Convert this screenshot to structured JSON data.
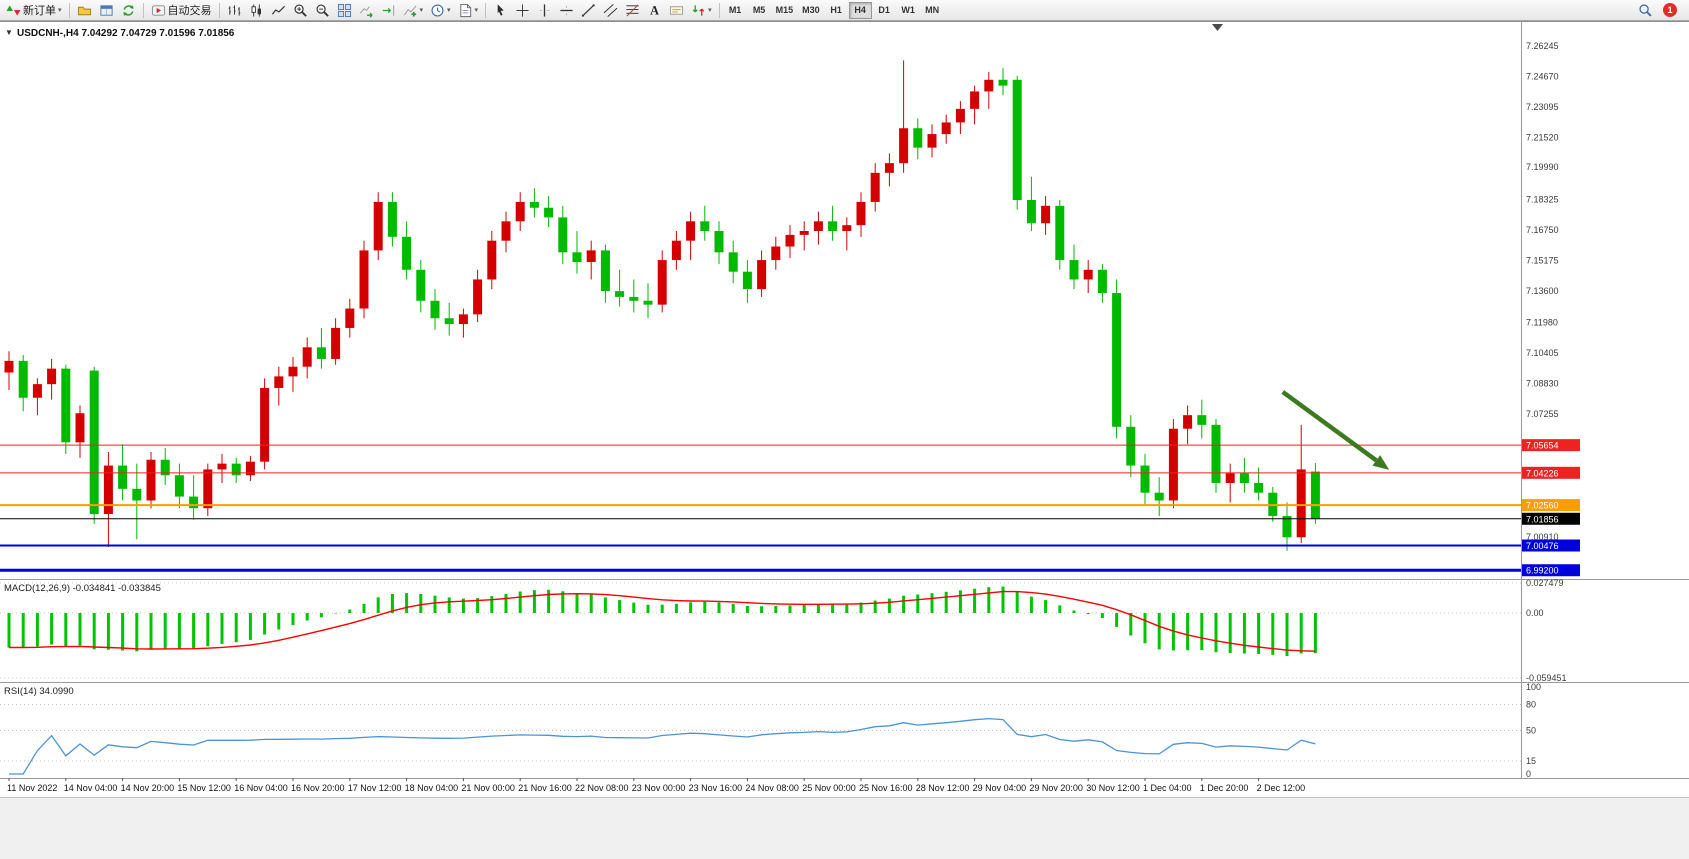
{
  "toolbar": {
    "new_order_label": "新订单",
    "autotrading_label": "自动交易",
    "timeframes": [
      "M1",
      "M5",
      "M15",
      "M30",
      "H1",
      "H4",
      "D1",
      "W1",
      "MN"
    ],
    "active_timeframe": "H4",
    "notification_count": "1"
  },
  "chart_data": {
    "type": "candlestick",
    "symbol": "USDCNH-",
    "period": "H4",
    "quote_line": "USDCNH-,H4 7.04292 7.04729 7.01596 7.01856",
    "ohlc_current": {
      "open": 7.04292,
      "high": 7.04729,
      "low": 7.01596,
      "close": 7.01856
    },
    "ylim": [
      6.988,
      7.2712
    ],
    "colors": {
      "up": "#d40000",
      "down": "#00ba00",
      "macd_hist": "#00c400",
      "macd_signal": "#ff0000",
      "rsi_line": "#4a94d6",
      "arrow": "#3c7a1f"
    },
    "price_axis_ticks": [
      7.26245,
      7.2467,
      7.23095,
      7.2152,
      7.1999,
      7.18325,
      7.1675,
      7.15175,
      7.136,
      7.1198,
      7.10405,
      7.0883,
      7.07255,
      7.0091
    ],
    "time_axis_labels": [
      "11 Nov 2022",
      "14 Nov 04:00",
      "14 Nov 20:00",
      "15 Nov 12:00",
      "16 Nov 04:00",
      "16 Nov 20:00",
      "17 Nov 12:00",
      "18 Nov 04:00",
      "21 Nov 00:00",
      "21 Nov 16:00",
      "22 Nov 08:00",
      "23 Nov 00:00",
      "23 Nov 16:00",
      "24 Nov 08:00",
      "25 Nov 00:00",
      "25 Nov 16:00",
      "28 Nov 12:00",
      "29 Nov 04:00",
      "29 Nov 20:00",
      "30 Nov 12:00",
      "1 Dec 04:00",
      "1 Dec 20:00",
      "2 Dec 12:00"
    ],
    "bars_per_label": 4,
    "price_lines": [
      {
        "price": 7.05654,
        "label": "7.05654",
        "color": "#ef2222",
        "width": 1
      },
      {
        "price": 7.04226,
        "label": "7.04226",
        "color": "#ef2222",
        "width": 1
      },
      {
        "price": 7.0256,
        "label": "7.02560",
        "color": "#ff9c00",
        "width": 2
      },
      {
        "price": 7.01856,
        "label": "7.01856",
        "color": "#000000",
        "width": 1
      },
      {
        "price": 7.00476,
        "label": "7.00476",
        "color": "#0000dd",
        "width": 2
      },
      {
        "price": 6.992,
        "label": "6.99200",
        "color": "#0000dd",
        "width": 3
      }
    ],
    "candles": [
      [
        7.094,
        7.105,
        7.085,
        7.1
      ],
      [
        7.1,
        7.103,
        7.074,
        7.081
      ],
      [
        7.081,
        7.091,
        7.072,
        7.088
      ],
      [
        7.088,
        7.101,
        7.08,
        7.096
      ],
      [
        7.096,
        7.098,
        7.052,
        7.058
      ],
      [
        7.058,
        7.077,
        7.05,
        7.073
      ],
      [
        7.095,
        7.097,
        7.016,
        7.021
      ],
      [
        7.021,
        7.053,
        7.004,
        7.046
      ],
      [
        7.046,
        7.057,
        7.028,
        7.034
      ],
      [
        7.034,
        7.047,
        7.008,
        7.028
      ],
      [
        7.028,
        7.053,
        7.024,
        7.049
      ],
      [
        7.049,
        7.055,
        7.036,
        7.041
      ],
      [
        7.041,
        7.047,
        7.024,
        7.03
      ],
      [
        7.03,
        7.041,
        7.018,
        7.024
      ],
      [
        7.024,
        7.047,
        7.02,
        7.044
      ],
      [
        7.044,
        7.052,
        7.037,
        7.047
      ],
      [
        7.047,
        7.05,
        7.037,
        7.041
      ],
      [
        7.041,
        7.051,
        7.038,
        7.048
      ],
      [
        7.048,
        7.091,
        7.044,
        7.086
      ],
      [
        7.086,
        7.097,
        7.077,
        7.092
      ],
      [
        7.092,
        7.102,
        7.084,
        7.097
      ],
      [
        7.097,
        7.112,
        7.091,
        7.107
      ],
      [
        7.107,
        7.117,
        7.096,
        7.101
      ],
      [
        7.101,
        7.122,
        7.098,
        7.117
      ],
      [
        7.117,
        7.132,
        7.112,
        7.127
      ],
      [
        7.127,
        7.162,
        7.122,
        7.157
      ],
      [
        7.157,
        7.187,
        7.152,
        7.182
      ],
      [
        7.182,
        7.187,
        7.159,
        7.164
      ],
      [
        7.164,
        7.172,
        7.142,
        7.147
      ],
      [
        7.147,
        7.152,
        7.125,
        7.131
      ],
      [
        7.131,
        7.137,
        7.116,
        7.122
      ],
      [
        7.122,
        7.13,
        7.113,
        7.119
      ],
      [
        7.119,
        7.127,
        7.112,
        7.124
      ],
      [
        7.124,
        7.147,
        7.12,
        7.142
      ],
      [
        7.142,
        7.167,
        7.137,
        7.162
      ],
      [
        7.162,
        7.177,
        7.156,
        7.172
      ],
      [
        7.172,
        7.187,
        7.167,
        7.182
      ],
      [
        7.182,
        7.189,
        7.174,
        7.179
      ],
      [
        7.179,
        7.185,
        7.169,
        7.174
      ],
      [
        7.174,
        7.18,
        7.15,
        7.156
      ],
      [
        7.156,
        7.167,
        7.145,
        7.151
      ],
      [
        7.151,
        7.162,
        7.142,
        7.157
      ],
      [
        7.157,
        7.16,
        7.13,
        7.136
      ],
      [
        7.136,
        7.147,
        7.128,
        7.133
      ],
      [
        7.133,
        7.142,
        7.125,
        7.131
      ],
      [
        7.131,
        7.14,
        7.122,
        7.129
      ],
      [
        7.129,
        7.157,
        7.125,
        7.152
      ],
      [
        7.152,
        7.167,
        7.147,
        7.162
      ],
      [
        7.162,
        7.177,
        7.152,
        7.172
      ],
      [
        7.172,
        7.18,
        7.162,
        7.167
      ],
      [
        7.167,
        7.172,
        7.15,
        7.156
      ],
      [
        7.156,
        7.162,
        7.14,
        7.146
      ],
      [
        7.146,
        7.152,
        7.13,
        7.137
      ],
      [
        7.137,
        7.157,
        7.133,
        7.152
      ],
      [
        7.152,
        7.164,
        7.147,
        7.159
      ],
      [
        7.159,
        7.17,
        7.153,
        7.165
      ],
      [
        7.165,
        7.172,
        7.157,
        7.167
      ],
      [
        7.167,
        7.177,
        7.16,
        7.172
      ],
      [
        7.172,
        7.18,
        7.162,
        7.167
      ],
      [
        7.167,
        7.174,
        7.157,
        7.17
      ],
      [
        7.17,
        7.187,
        7.164,
        7.182
      ],
      [
        7.182,
        7.202,
        7.177,
        7.197
      ],
      [
        7.197,
        7.207,
        7.19,
        7.202
      ],
      [
        7.202,
        7.255,
        7.197,
        7.22
      ],
      [
        7.22,
        7.225,
        7.204,
        7.21
      ],
      [
        7.21,
        7.222,
        7.205,
        7.217
      ],
      [
        7.217,
        7.227,
        7.212,
        7.223
      ],
      [
        7.223,
        7.234,
        7.217,
        7.23
      ],
      [
        7.23,
        7.242,
        7.222,
        7.239
      ],
      [
        7.239,
        7.249,
        7.23,
        7.245
      ],
      [
        7.245,
        7.251,
        7.237,
        7.242
      ],
      [
        7.245,
        7.247,
        7.178,
        7.183
      ],
      [
        7.183,
        7.195,
        7.167,
        7.171
      ],
      [
        7.171,
        7.185,
        7.165,
        7.18
      ],
      [
        7.18,
        7.183,
        7.147,
        7.152
      ],
      [
        7.152,
        7.16,
        7.137,
        7.142
      ],
      [
        7.142,
        7.152,
        7.135,
        7.147
      ],
      [
        7.147,
        7.15,
        7.13,
        7.135
      ],
      [
        7.135,
        7.142,
        7.06,
        7.066
      ],
      [
        7.066,
        7.072,
        7.04,
        7.046
      ],
      [
        7.046,
        7.052,
        7.026,
        7.032
      ],
      [
        7.032,
        7.04,
        7.02,
        7.028
      ],
      [
        7.028,
        7.07,
        7.024,
        7.065
      ],
      [
        7.065,
        7.077,
        7.057,
        7.072
      ],
      [
        7.072,
        7.08,
        7.06,
        7.067
      ],
      [
        7.067,
        7.07,
        7.032,
        7.037
      ],
      [
        7.037,
        7.047,
        7.027,
        7.042
      ],
      [
        7.042,
        7.05,
        7.032,
        7.037
      ],
      [
        7.037,
        7.045,
        7.028,
        7.032
      ],
      [
        7.032,
        7.035,
        7.017,
        7.02
      ],
      [
        7.02,
        7.027,
        7.002,
        7.009
      ],
      [
        7.009,
        7.067,
        7.006,
        7.044
      ],
      [
        7.04292,
        7.04729,
        7.01596,
        7.01856
      ]
    ],
    "indicators": [
      {
        "name": "MACD",
        "title": "MACD(12,26,9) -0.034841 -0.033845",
        "params": [
          12,
          26,
          9
        ],
        "values": [
          -0.034841,
          -0.033845
        ],
        "ylim": [
          -0.059451,
          0.027479
        ],
        "axis_ticks": [
          "0.027479",
          "0.00",
          "-0.059451"
        ]
      },
      {
        "name": "RSI",
        "title": "RSI(14) 34.0990",
        "params": [
          14
        ],
        "value": 34.099,
        "ylim": [
          0,
          100
        ],
        "levels": [
          80,
          50,
          15
        ],
        "axis_ticks": [
          "100",
          "80",
          "50",
          "15",
          "0"
        ]
      }
    ],
    "arrow_annotation": {
      "from": {
        "bar": 89.7,
        "price": 7.084
      },
      "to": {
        "bar": 97.2,
        "price": 7.0438
      }
    }
  }
}
